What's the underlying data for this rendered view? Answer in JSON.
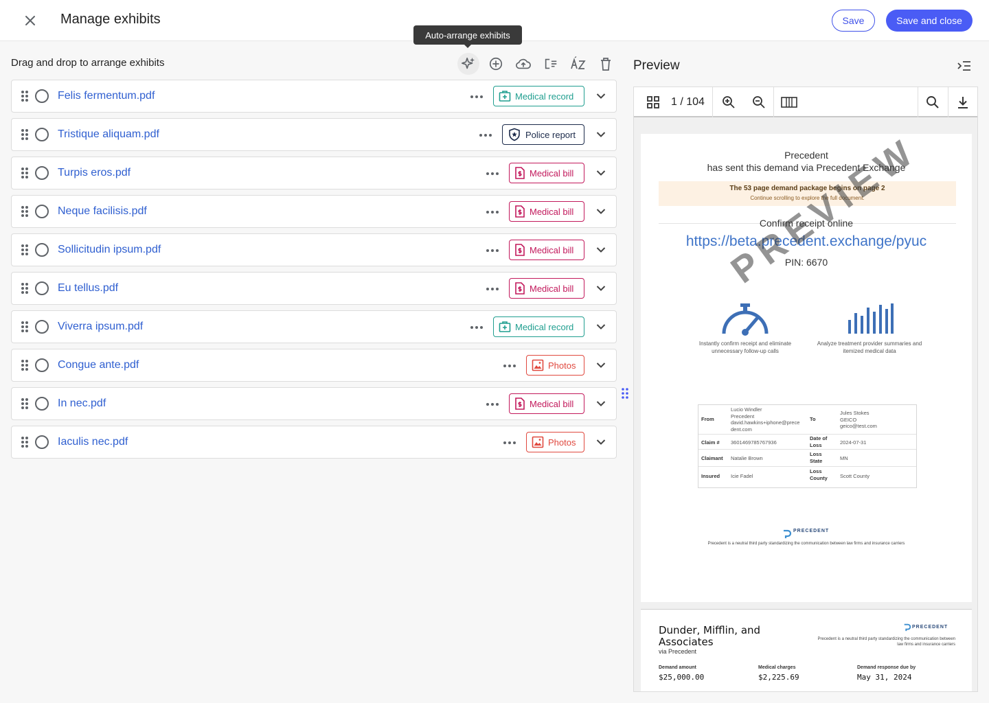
{
  "header": {
    "title": "Manage exhibits",
    "save_label": "Save",
    "save_close_label": "Save and close"
  },
  "tooltip": "Auto-arrange exhibits",
  "left": {
    "heading": "Drag and drop to arrange exhibits",
    "toolbar_icons": [
      "auto-arrange-icon",
      "add-icon",
      "upload-icon",
      "checklist-icon",
      "sort-az-icon",
      "delete-icon"
    ],
    "exhibits": [
      {
        "name": "Felis fermentum.pdf",
        "tag": "Medical record",
        "kind": "record"
      },
      {
        "name": "Tristique aliquam.pdf",
        "tag": "Police report",
        "kind": "police"
      },
      {
        "name": "Turpis eros.pdf",
        "tag": "Medical bill",
        "kind": "bill"
      },
      {
        "name": "Neque facilisis.pdf",
        "tag": "Medical bill",
        "kind": "bill"
      },
      {
        "name": "Sollicitudin ipsum.pdf",
        "tag": "Medical bill",
        "kind": "bill"
      },
      {
        "name": "Eu tellus.pdf",
        "tag": "Medical bill",
        "kind": "bill"
      },
      {
        "name": "Viverra ipsum.pdf",
        "tag": "Medical record",
        "kind": "record"
      },
      {
        "name": "Congue ante.pdf",
        "tag": "Photos",
        "kind": "photos"
      },
      {
        "name": "In nec.pdf",
        "tag": "Medical bill",
        "kind": "bill"
      },
      {
        "name": "Iaculis nec.pdf",
        "tag": "Photos",
        "kind": "photos"
      }
    ]
  },
  "colors": {
    "primary": "#4a5cf5",
    "link": "#2f5fd0",
    "record": "#1f9e8f",
    "police": "#1b2a4a",
    "bill": "#c2185b",
    "photos": "#e0483e"
  },
  "preview": {
    "title": "Preview",
    "page_indicator": "1 / 104",
    "page1": {
      "sender": "Precedent",
      "sent_line": "has sent this demand via Precedent Exchange",
      "banner_title": "The 53 page demand package begins on page 2",
      "banner_sub": "Continue scrolling to explore the full document.",
      "confirm": "Confirm receipt online",
      "url": "https://beta.precedent.exchange/pyuc",
      "pin": "PIN: 6670",
      "watermark": "PREVIEW",
      "feature1": "Instantly confirm receipt and eliminate unnecessary follow-up calls",
      "feature2": "Analyze treatment provider summaries and itemized medical data",
      "table": {
        "from_label": "From",
        "from_value": "Lucio Windler\nPrecedent\ndavid.hawkins+iphone@prece\ndent.com",
        "to_label": "To",
        "to_value": "Jules Stokes\nGEICO\ngeico@test.com",
        "claim_label": "Claim #",
        "claim_value": "3601469785767936",
        "dol_label": "Date of\nLoss",
        "dol_value": "2024-07-31",
        "claimant_label": "Claimant",
        "claimant_value": "Natalie Brown",
        "state_label": "Loss\nState",
        "state_value": "MN",
        "insured_label": "Insured",
        "insured_value": "Icie Fadel",
        "county_label": "Loss\nCounty",
        "county_value": "Scott County"
      },
      "footer_logo": "PRECEDENT",
      "footer_text": "Precedent is a neutral third party standardizing the communication between law firms and insurance carriers"
    },
    "page2": {
      "company": "Dunder, Mifflin, and\nAssociates",
      "via": "via Precedent",
      "logo": "PRECEDENT",
      "logo_text": "Precedent is a neutral third party standardizing the communication between law firms and insurance carriers",
      "demand_amount_label": "Demand amount",
      "demand_amount": "$25,000.00",
      "medical_charges_label": "Medical charges",
      "medical_charges": "$2,225.69",
      "due_label": "Demand response due by",
      "due": "May 31, 2024"
    }
  }
}
